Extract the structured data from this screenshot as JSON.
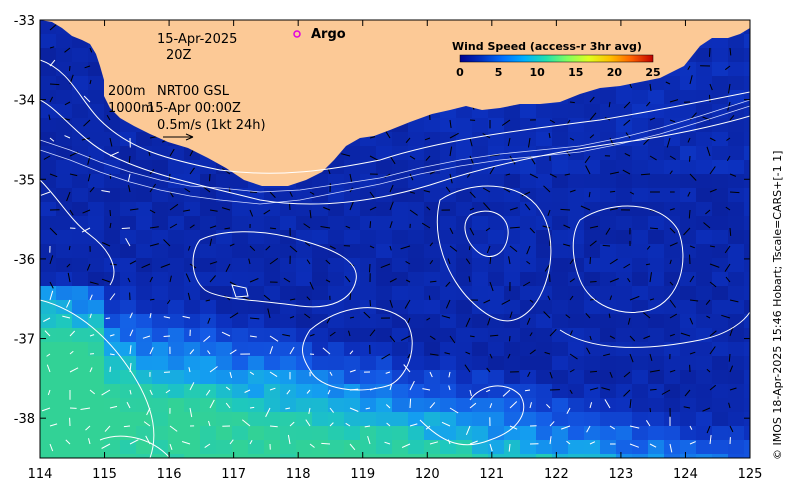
{
  "map": {
    "date": "15-Apr-2025",
    "time": "20Z",
    "depth_label_1": "200m",
    "depth_label_2": "1000m",
    "product": "NRT00 GSL",
    "product_time": "15-Apr 00:00Z",
    "vector_scale": "0.5m/s (1kt 24h)",
    "argo_label": "Argo",
    "side_note": "© IMOS 18-Apr-2025 15:46 Hobart; Tscale=CARS+[-1 1]",
    "lon_ticks": [
      "114",
      "115",
      "116",
      "117",
      "118",
      "119",
      "120",
      "121",
      "122",
      "123",
      "124",
      "125"
    ],
    "lat_ticks": [
      "-33",
      "-34",
      "-35",
      "-36",
      "-37",
      "-38"
    ],
    "lon_range": [
      114,
      125
    ],
    "lat_range": [
      -38.5,
      -33
    ],
    "land_color": "#fcc996",
    "contour_color": "#ffffff",
    "colorbar": {
      "title": "Wind Speed (access-r 3hr avg)",
      "ticks": [
        "0",
        "5",
        "10",
        "15",
        "20",
        "25"
      ],
      "range": [
        0,
        25
      ],
      "colors": [
        "#00008f",
        "#0030c0",
        "#0070ff",
        "#00b0ff",
        "#20e0b0",
        "#80ff60",
        "#e0ff20",
        "#ffc000",
        "#ff6000",
        "#c00000"
      ]
    }
  }
}
